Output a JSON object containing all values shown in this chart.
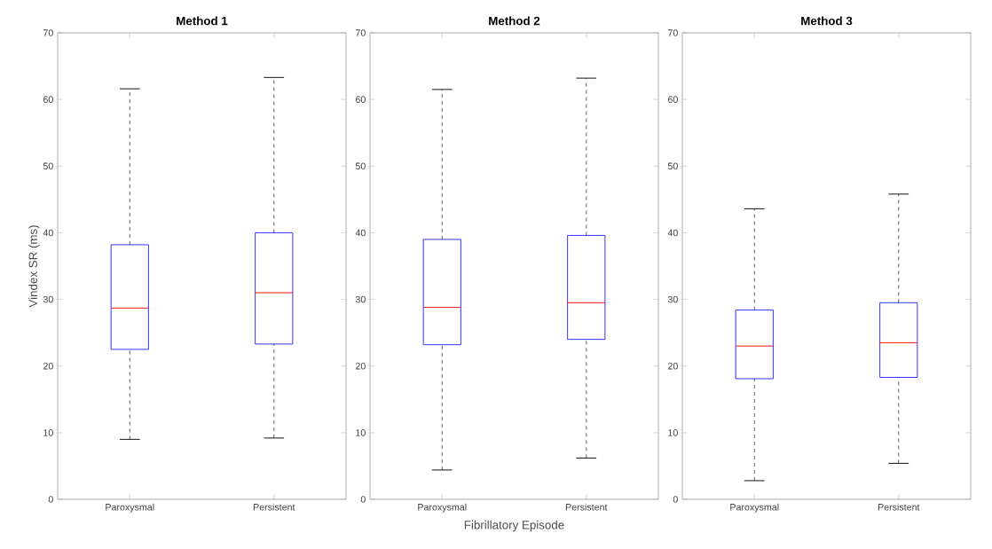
{
  "chart_data": [
    {
      "type": "box",
      "title": "Method 1",
      "ylabel": "Vindex SR (ms)",
      "categories": [
        "Paroxysmal",
        "Persistent"
      ],
      "boxes": [
        {
          "low": 9.0,
          "q1": 22.5,
          "median": 28.7,
          "q3": 38.2,
          "high": 61.6
        },
        {
          "low": 9.2,
          "q1": 23.3,
          "median": 31.0,
          "q3": 40.0,
          "high": 63.3
        }
      ],
      "ylim": [
        0,
        70
      ],
      "yticks": [
        0,
        10,
        20,
        30,
        40,
        50,
        60,
        70
      ],
      "grid": false
    },
    {
      "type": "box",
      "title": "Method 2",
      "xlabel": "Fibrillatory Episode",
      "categories": [
        "Paroxysmal",
        "Persistent"
      ],
      "boxes": [
        {
          "low": 4.4,
          "q1": 23.2,
          "median": 28.8,
          "q3": 39.0,
          "high": 61.5
        },
        {
          "low": 6.2,
          "q1": 24.0,
          "median": 29.5,
          "q3": 39.6,
          "high": 63.2
        }
      ],
      "ylim": [
        0,
        70
      ],
      "yticks": [
        0,
        10,
        20,
        30,
        40,
        50,
        60,
        70
      ],
      "grid": false
    },
    {
      "type": "box",
      "title": "Method 3",
      "categories": [
        "Paroxysmal",
        "Persistent"
      ],
      "boxes": [
        {
          "low": 2.8,
          "q1": 18.1,
          "median": 23.0,
          "q3": 28.4,
          "high": 43.6
        },
        {
          "low": 5.4,
          "q1": 18.3,
          "median": 23.5,
          "q3": 29.5,
          "high": 45.8
        }
      ],
      "ylim": [
        0,
        70
      ],
      "yticks": [
        0,
        10,
        20,
        30,
        40,
        50,
        60,
        70
      ],
      "grid": false
    }
  ]
}
